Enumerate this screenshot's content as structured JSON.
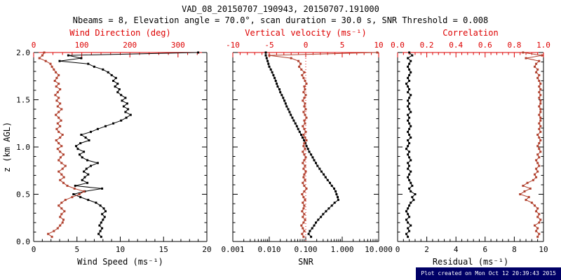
{
  "header": {
    "title": "VAD_08_20150707_190943, 20150707.191000",
    "subtitle": "Nbeams = 8, Elevation angle = 70.0°, scan duration = 30.0 s, SNR Threshold = 0.008"
  },
  "footer": {
    "created": "Plot created on Mon Oct 12 20:39:43 2015"
  },
  "colors": {
    "axis_red": "#dd0000",
    "series_red": "#b0402d",
    "series_black": "#000000",
    "footer_bg": "#000066",
    "footer_fg": "#ffffff"
  },
  "chart_data": {
    "type": "line",
    "y_axis": {
      "label": "z (km AGL)",
      "range": [
        0,
        2
      ],
      "ticks": [
        0.0,
        0.5,
        1.0,
        1.5,
        2.0
      ],
      "tick_labels": [
        "0.0",
        "0.5",
        "1.0",
        "1.5",
        "2.0"
      ]
    },
    "levels": [
      0.05,
      0.08,
      0.11,
      0.14,
      0.17,
      0.2,
      0.23,
      0.26,
      0.29,
      0.32,
      0.35,
      0.38,
      0.41,
      0.44,
      0.47,
      0.5,
      0.53,
      0.56,
      0.59,
      0.62,
      0.65,
      0.68,
      0.71,
      0.74,
      0.77,
      0.8,
      0.83,
      0.86,
      0.89,
      0.92,
      0.95,
      0.98,
      1.01,
      1.04,
      1.07,
      1.1,
      1.13,
      1.16,
      1.19,
      1.22,
      1.25,
      1.28,
      1.31,
      1.34,
      1.37,
      1.4,
      1.43,
      1.46,
      1.49,
      1.52,
      1.55,
      1.58,
      1.61,
      1.64,
      1.67,
      1.7,
      1.73,
      1.76,
      1.79,
      1.82,
      1.85,
      1.88,
      1.91,
      1.94,
      1.97,
      2.0
    ],
    "panels": [
      {
        "name": "wind",
        "bottom_axis": {
          "label": "Wind Speed (ms⁻¹)",
          "scale": "linear",
          "range": [
            0,
            20
          ],
          "ticks": [
            0,
            5,
            10,
            15,
            20
          ],
          "tick_labels": [
            "0",
            "5",
            "10",
            "15",
            "20"
          ]
        },
        "top_axis": {
          "label": "Wind Direction (deg)",
          "scale": "linear",
          "range": [
            0,
            360
          ],
          "ticks": [
            0,
            100,
            200,
            300
          ],
          "tick_labels": [
            "0",
            "100",
            "200",
            "300"
          ]
        },
        "series": [
          {
            "name": "wind-speed",
            "axis": "bottom",
            "color": "black",
            "values": [
              7.8,
              7.5,
              7.7,
              7.9,
              7.6,
              7.8,
              8.0,
              8.2,
              7.9,
              8.3,
              8.1,
              7.7,
              7.2,
              6.3,
              5.4,
              4.6,
              5.9,
              7.9,
              4.8,
              6.2,
              5.6,
              5.9,
              6.3,
              5.8,
              6.1,
              6.6,
              7.4,
              6.2,
              5.6,
              5.3,
              5.8,
              5.1,
              4.9,
              5.4,
              6.4,
              6.0,
              5.5,
              6.6,
              7.4,
              8.3,
              9.2,
              10.1,
              10.7,
              11.2,
              10.6,
              10.9,
              10.4,
              10.8,
              10.2,
              10.6,
              10.1,
              9.7,
              9.9,
              9.4,
              9.7,
              9.2,
              9.5,
              9.0,
              8.6,
              8.0,
              7.0,
              6.3,
              3.0,
              5.5,
              4.0,
              19.0
            ]
          },
          {
            "name": "wind-direction",
            "axis": "top",
            "color": "red",
            "values": [
              38,
              30,
              42,
              50,
              55,
              60,
              62,
              55,
              58,
              64,
              58,
              52,
              58,
              66,
              80,
              95,
              105,
              85,
              70,
              62,
              55,
              63,
              58,
              52,
              60,
              66,
              58,
              52,
              56,
              62,
              55,
              50,
              58,
              52,
              47,
              55,
              60,
              52,
              48,
              55,
              50,
              57,
              52,
              46,
              52,
              58,
              50,
              55,
              48,
              52,
              45,
              50,
              55,
              47,
              52,
              44,
              48,
              52,
              46,
              42,
              38,
              35,
              25,
              12,
              18,
              22
            ]
          }
        ]
      },
      {
        "name": "snr",
        "zero_line_at": 0,
        "bottom_axis": {
          "label": "SNR",
          "scale": "log",
          "range": [
            0.001,
            10
          ],
          "ticks": [
            0.001,
            0.01,
            0.1,
            1,
            10
          ],
          "tick_labels": [
            "0.001",
            "0.010",
            "0.100",
            "1.000",
            "10.000"
          ]
        },
        "top_axis": {
          "label": "Vertical velocity (ms⁻¹)",
          "scale": "linear",
          "range": [
            -10,
            10
          ],
          "ticks": [
            -10,
            -5,
            0,
            5,
            10
          ],
          "tick_labels": [
            "-10",
            "-5",
            "0",
            "5",
            "10"
          ]
        },
        "series": [
          {
            "name": "snr",
            "axis": "bottom",
            "color": "black",
            "values": [
              0.14,
              0.12,
              0.13,
              0.15,
              0.17,
              0.19,
              0.22,
              0.26,
              0.3,
              0.36,
              0.43,
              0.52,
              0.62,
              0.78,
              0.75,
              0.7,
              0.66,
              0.6,
              0.52,
              0.46,
              0.4,
              0.35,
              0.31,
              0.27,
              0.24,
              0.21,
              0.19,
              0.17,
              0.155,
              0.14,
              0.125,
              0.115,
              0.105,
              0.098,
              0.09,
              0.082,
              0.075,
              0.068,
              0.062,
              0.057,
              0.052,
              0.047,
              0.043,
              0.039,
              0.036,
              0.033,
              0.03,
              0.028,
              0.026,
              0.024,
              0.022,
              0.02,
              0.019,
              0.017,
              0.016,
              0.015,
              0.014,
              0.013,
              0.012,
              0.011,
              0.01,
              0.0095,
              0.009,
              0.0085,
              0.008,
              0.008
            ]
          },
          {
            "name": "vertical-velocity",
            "axis": "top",
            "color": "red",
            "values": [
              -0.3,
              -0.5,
              -0.2,
              -0.4,
              -0.6,
              -0.3,
              -0.1,
              -0.4,
              -0.2,
              -0.5,
              -0.3,
              -0.2,
              -0.4,
              -0.1,
              -0.3,
              -0.5,
              -0.2,
              0.1,
              -0.2,
              -0.4,
              -0.1,
              -0.3,
              -0.2,
              0.0,
              -0.3,
              -0.1,
              -0.4,
              -0.2,
              0.0,
              -0.2,
              -0.4,
              -0.1,
              -0.3,
              -0.2,
              0.1,
              -0.1,
              -0.3,
              0.0,
              -0.2,
              -0.4,
              -0.1,
              -0.2,
              0.1,
              -0.1,
              -0.3,
              0.0,
              -0.2,
              -0.1,
              -0.4,
              -0.2,
              0.0,
              -0.3,
              -0.1,
              -0.2,
              0.1,
              -0.1,
              -0.3,
              -0.5,
              -0.2,
              -0.6,
              -0.9,
              -0.7,
              -1.0,
              -2.0,
              -5.0,
              9.8
            ]
          }
        ]
      },
      {
        "name": "residual",
        "bottom_axis": {
          "label": "Residual (ms⁻¹)",
          "scale": "linear",
          "range": [
            0,
            10
          ],
          "ticks": [
            0,
            2,
            4,
            6,
            8,
            10
          ],
          "tick_labels": [
            "0",
            "2",
            "4",
            "6",
            "8",
            "10"
          ]
        },
        "top_axis": {
          "label": "Correlation",
          "scale": "linear",
          "range": [
            0,
            1
          ],
          "ticks": [
            0.0,
            0.2,
            0.4,
            0.6,
            0.8,
            1.0
          ],
          "tick_labels": [
            "0.0",
            "0.2",
            "0.4",
            "0.6",
            "0.8",
            "1.0"
          ]
        },
        "series": [
          {
            "name": "residual",
            "axis": "bottom",
            "color": "black",
            "values": [
              0.7,
              0.6,
              0.8,
              0.7,
              0.9,
              0.7,
              0.6,
              0.8,
              0.7,
              0.6,
              0.7,
              0.8,
              0.9,
              1.1,
              1.0,
              1.2,
              0.9,
              0.8,
              1.0,
              0.9,
              0.8,
              0.7,
              0.8,
              0.9,
              0.7,
              0.8,
              0.7,
              0.9,
              0.8,
              0.7,
              0.8,
              0.6,
              0.7,
              0.8,
              0.7,
              0.9,
              0.8,
              0.7,
              0.8,
              0.9,
              0.8,
              0.7,
              0.8,
              0.7,
              0.9,
              0.8,
              0.7,
              0.8,
              0.7,
              0.8,
              0.9,
              0.7,
              0.8,
              0.7,
              0.6,
              0.8,
              0.7,
              0.8,
              0.9,
              0.8,
              0.7,
              0.8,
              0.9,
              0.7,
              1.0,
              0.8
            ]
          },
          {
            "name": "correlation",
            "axis": "top",
            "color": "red",
            "values": [
              0.96,
              0.97,
              0.95,
              0.96,
              0.94,
              0.97,
              0.98,
              0.96,
              0.97,
              0.95,
              0.96,
              0.94,
              0.92,
              0.88,
              0.9,
              0.84,
              0.87,
              0.91,
              0.86,
              0.89,
              0.93,
              0.95,
              0.94,
              0.96,
              0.95,
              0.97,
              0.96,
              0.95,
              0.97,
              0.96,
              0.98,
              0.97,
              0.96,
              0.97,
              0.98,
              0.97,
              0.96,
              0.98,
              0.97,
              0.98,
              0.97,
              0.98,
              0.98,
              0.97,
              0.98,
              0.98,
              0.97,
              0.98,
              0.98,
              0.97,
              0.98,
              0.97,
              0.98,
              0.97,
              0.98,
              0.97,
              0.96,
              0.97,
              0.95,
              0.96,
              0.94,
              0.95,
              0.97,
              0.88,
              0.99,
              0.86
            ]
          }
        ]
      }
    ]
  }
}
